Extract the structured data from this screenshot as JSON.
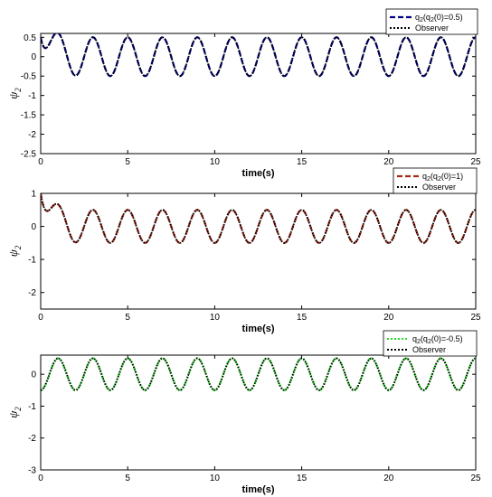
{
  "chart_data": [
    {
      "type": "line",
      "xlabel": "time(s)",
      "ylabel": "ψ",
      "ylabel_sub": "2",
      "xlim": [
        0,
        25
      ],
      "ylim": [
        -2.5,
        0.6
      ],
      "xticks": [
        0,
        5,
        10,
        15,
        20,
        25
      ],
      "yticks": [
        0.5,
        0,
        -0.5,
        -1,
        -1.5,
        -2,
        -2.5
      ],
      "ytick_labels": [
        "0.5",
        "0",
        "-0.5",
        "-1",
        "-1.5",
        "-2",
        "-2.5"
      ],
      "legend_position": "top-right",
      "series": [
        {
          "name": "q2(q2(0)=0.5)",
          "legend_label": "q",
          "legend_sub": "2",
          "legend_rest": "(q",
          "legend_sub2": "2",
          "legend_rest2": "(0)=0.5)",
          "color": "#00008b",
          "style": "dashed",
          "initial": 0.5,
          "amplitude": 0.5,
          "period": 2.0
        },
        {
          "name": "Observer",
          "legend_label": "Observer",
          "color": "#000000",
          "style": "dotted",
          "initial": 0.5,
          "amplitude": 0.5,
          "period": 2.0
        }
      ]
    },
    {
      "type": "line",
      "xlabel": "time(s)",
      "ylabel": "ψ",
      "ylabel_sub": "2",
      "xlim": [
        0,
        25
      ],
      "ylim": [
        -2.5,
        1.0
      ],
      "xticks": [
        0,
        5,
        10,
        15,
        20,
        25
      ],
      "yticks": [
        1,
        0,
        -1,
        -2
      ],
      "ytick_labels": [
        "1",
        "0",
        "-1",
        "-2"
      ],
      "legend_position": "top-right",
      "series": [
        {
          "name": "q2(q2(0)=1)",
          "legend_label": "q",
          "legend_sub": "2",
          "legend_rest": "(q",
          "legend_sub2": "2",
          "legend_rest2": "(0)=1)",
          "color": "#a52a1a",
          "style": "dashed",
          "initial": 1.0,
          "amplitude": 0.5,
          "period": 2.0
        },
        {
          "name": "Observer",
          "legend_label": "Observer",
          "color": "#000000",
          "style": "dotted",
          "initial": 1.0,
          "amplitude": 0.5,
          "period": 2.0
        }
      ]
    },
    {
      "type": "line",
      "xlabel": "time(s)",
      "ylabel": "ψ",
      "ylabel_sub": "2",
      "xlim": [
        0,
        25
      ],
      "ylim": [
        -3.0,
        0.6
      ],
      "xticks": [
        0,
        5,
        10,
        15,
        20,
        25
      ],
      "yticks": [
        0,
        -1,
        -2,
        -3
      ],
      "ytick_labels": [
        "0",
        "-1",
        "-2",
        "-3"
      ],
      "legend_position": "top-right",
      "series": [
        {
          "name": "q2(q2(0)=-0.5)",
          "legend_label": "q",
          "legend_sub": "2",
          "legend_rest": "(q",
          "legend_sub2": "2",
          "legend_rest2": "(0)=-0.5)",
          "color": "#22dd22",
          "style": "dotted",
          "initial": -0.5,
          "amplitude": 0.5,
          "period": 2.0
        },
        {
          "name": "Observer",
          "legend_label": "Observer",
          "color": "#000000",
          "style": "dotted",
          "initial": -0.5,
          "amplitude": 0.5,
          "period": 2.0
        }
      ]
    }
  ]
}
